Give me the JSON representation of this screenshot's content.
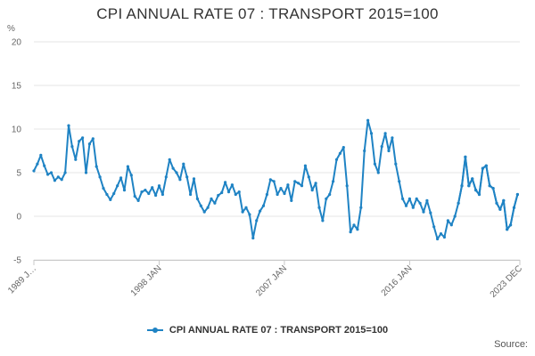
{
  "chart_data": {
    "type": "line",
    "title": "CPI ANNUAL RATE 07 : TRANSPORT 2015=100",
    "unit_label": "%",
    "ylim": [
      -5,
      20
    ],
    "y_ticks": [
      -5,
      0,
      5,
      10,
      15,
      20
    ],
    "x_range": [
      1989.0,
      2023.917
    ],
    "x_tick_labels": [
      {
        "label": "1989 J…",
        "x": 1989.0
      },
      {
        "label": "1998 JAN",
        "x": 1998.0
      },
      {
        "label": "2007 JAN",
        "x": 2007.0
      },
      {
        "label": "2016 JAN",
        "x": 2016.0
      },
      {
        "label": "2023 DEC",
        "x": 2023.917
      }
    ],
    "grid": true,
    "legend": "bottom",
    "colors": {
      "series": "#1f83c4",
      "grid": "#e6e6e6"
    },
    "series": [
      {
        "name": "CPI ANNUAL RATE 07 : TRANSPORT 2015=100",
        "points": [
          [
            1989.0,
            5.2
          ],
          [
            1989.25,
            6.0
          ],
          [
            1989.5,
            7.0
          ],
          [
            1989.75,
            5.8
          ],
          [
            1990.0,
            4.8
          ],
          [
            1990.25,
            5.0
          ],
          [
            1990.5,
            4.1
          ],
          [
            1990.75,
            4.5
          ],
          [
            1991.0,
            4.2
          ],
          [
            1991.25,
            5.0
          ],
          [
            1991.5,
            10.4
          ],
          [
            1991.75,
            8.0
          ],
          [
            1992.0,
            6.5
          ],
          [
            1992.25,
            8.6
          ],
          [
            1992.5,
            9.0
          ],
          [
            1992.75,
            5.0
          ],
          [
            1993.0,
            8.3
          ],
          [
            1993.25,
            8.9
          ],
          [
            1993.5,
            5.7
          ],
          [
            1993.75,
            4.5
          ],
          [
            1994.0,
            3.2
          ],
          [
            1994.25,
            2.5
          ],
          [
            1994.5,
            1.9
          ],
          [
            1994.75,
            2.6
          ],
          [
            1995.0,
            3.5
          ],
          [
            1995.25,
            4.4
          ],
          [
            1995.5,
            3.0
          ],
          [
            1995.75,
            5.7
          ],
          [
            1996.0,
            4.7
          ],
          [
            1996.25,
            2.3
          ],
          [
            1996.5,
            1.8
          ],
          [
            1996.75,
            2.8
          ],
          [
            1997.0,
            3.0
          ],
          [
            1997.25,
            2.6
          ],
          [
            1997.5,
            3.3
          ],
          [
            1997.75,
            2.4
          ],
          [
            1998.0,
            3.5
          ],
          [
            1998.25,
            2.5
          ],
          [
            1998.5,
            4.5
          ],
          [
            1998.75,
            6.5
          ],
          [
            1999.0,
            5.5
          ],
          [
            1999.25,
            5.0
          ],
          [
            1999.5,
            4.2
          ],
          [
            1999.75,
            6.0
          ],
          [
            2000.0,
            4.5
          ],
          [
            2000.25,
            2.5
          ],
          [
            2000.5,
            4.3
          ],
          [
            2000.75,
            2.0
          ],
          [
            2001.0,
            1.2
          ],
          [
            2001.25,
            0.5
          ],
          [
            2001.5,
            1.0
          ],
          [
            2001.75,
            2.0
          ],
          [
            2002.0,
            1.5
          ],
          [
            2002.25,
            2.4
          ],
          [
            2002.5,
            2.7
          ],
          [
            2002.75,
            3.9
          ],
          [
            2003.0,
            2.8
          ],
          [
            2003.25,
            3.6
          ],
          [
            2003.5,
            2.5
          ],
          [
            2003.75,
            2.8
          ],
          [
            2004.0,
            0.5
          ],
          [
            2004.25,
            1.0
          ],
          [
            2004.5,
            0.2
          ],
          [
            2004.75,
            -2.5
          ],
          [
            2005.0,
            -0.5
          ],
          [
            2005.25,
            0.6
          ],
          [
            2005.5,
            1.2
          ],
          [
            2005.75,
            2.5
          ],
          [
            2006.0,
            4.2
          ],
          [
            2006.25,
            4.0
          ],
          [
            2006.5,
            2.5
          ],
          [
            2006.75,
            3.2
          ],
          [
            2007.0,
            2.6
          ],
          [
            2007.25,
            3.6
          ],
          [
            2007.5,
            1.8
          ],
          [
            2007.75,
            4.0
          ],
          [
            2008.0,
            3.8
          ],
          [
            2008.25,
            3.5
          ],
          [
            2008.5,
            5.8
          ],
          [
            2008.75,
            4.5
          ],
          [
            2009.0,
            3.0
          ],
          [
            2009.25,
            3.8
          ],
          [
            2009.5,
            1.0
          ],
          [
            2009.75,
            -0.5
          ],
          [
            2010.0,
            2.0
          ],
          [
            2010.25,
            2.5
          ],
          [
            2010.5,
            4.0
          ],
          [
            2010.75,
            6.5
          ],
          [
            2011.0,
            7.2
          ],
          [
            2011.25,
            7.9
          ],
          [
            2011.5,
            3.5
          ],
          [
            2011.75,
            -1.8
          ],
          [
            2012.0,
            -1.0
          ],
          [
            2012.25,
            -1.5
          ],
          [
            2012.5,
            1.0
          ],
          [
            2012.75,
            7.5
          ],
          [
            2013.0,
            11.0
          ],
          [
            2013.25,
            9.5
          ],
          [
            2013.5,
            6.0
          ],
          [
            2013.75,
            5.0
          ],
          [
            2014.0,
            8.0
          ],
          [
            2014.25,
            9.5
          ],
          [
            2014.5,
            7.5
          ],
          [
            2014.75,
            9.0
          ],
          [
            2015.0,
            6.0
          ],
          [
            2015.25,
            4.0
          ],
          [
            2015.5,
            2.0
          ],
          [
            2015.75,
            1.2
          ],
          [
            2016.0,
            2.0
          ],
          [
            2016.25,
            1.0
          ],
          [
            2016.5,
            2.0
          ],
          [
            2016.75,
            1.5
          ],
          [
            2017.0,
            0.5
          ],
          [
            2017.25,
            1.8
          ],
          [
            2017.5,
            0.4
          ],
          [
            2017.75,
            -1.2
          ],
          [
            2018.0,
            -2.6
          ],
          [
            2018.25,
            -2.0
          ],
          [
            2018.5,
            -2.4
          ],
          [
            2018.75,
            -0.5
          ],
          [
            2019.0,
            -1.0
          ],
          [
            2019.25,
            0.0
          ],
          [
            2019.5,
            1.5
          ],
          [
            2019.75,
            3.5
          ],
          [
            2020.0,
            6.8
          ],
          [
            2020.25,
            3.5
          ],
          [
            2020.5,
            4.3
          ],
          [
            2020.75,
            3.0
          ],
          [
            2021.0,
            2.5
          ],
          [
            2021.25,
            5.5
          ],
          [
            2021.5,
            5.8
          ],
          [
            2021.75,
            3.5
          ],
          [
            2022.0,
            3.2
          ],
          [
            2022.25,
            1.5
          ],
          [
            2022.5,
            0.8
          ],
          [
            2022.75,
            1.8
          ],
          [
            2023.0,
            -1.5
          ],
          [
            2023.25,
            -1.0
          ],
          [
            2023.5,
            1.0
          ],
          [
            2023.75,
            2.5
          ]
        ]
      }
    ],
    "overlay_points": [
      [
        2019.5,
        1.5
      ],
      [
        2019.75,
        3.5
      ],
      [
        2020.0,
        6.8
      ],
      [
        2020.25,
        3.5
      ],
      [
        2020.5,
        4.3
      ],
      [
        2020.75,
        3.0
      ],
      [
        2021.0,
        2.5
      ],
      [
        2021.25,
        5.5
      ],
      [
        2021.5,
        5.8
      ],
      [
        2021.75,
        3.5
      ],
      [
        2022.0,
        3.2
      ],
      [
        2022.25,
        1.5
      ],
      [
        2022.5,
        0.8
      ],
      [
        2022.75,
        1.8
      ],
      [
        2023.0,
        -1.5
      ],
      [
        2023.25,
        -1.0
      ],
      [
        2023.5,
        1.0
      ],
      [
        2023.75,
        2.5
      ]
    ],
    "source_label": "Source:"
  }
}
